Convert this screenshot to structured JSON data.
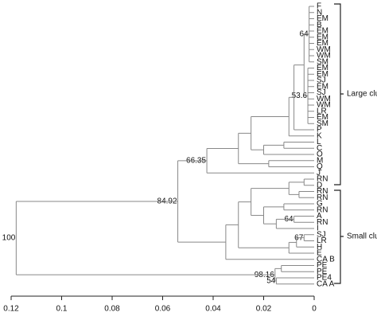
{
  "chart_data": {
    "type": "dendrogram",
    "xlim": [
      0.12,
      0
    ],
    "xticks": [
      0.12,
      0.1,
      0.08,
      0.06,
      0.04,
      0.02,
      0
    ],
    "color": "#888888",
    "cluster_labels": [
      "Large cluster",
      "Small cluster"
    ],
    "tree": {
      "height": 0.118,
      "label": "100",
      "children": [
        {
          "height": 0.054,
          "label": "84.92",
          "children": [
            {
              "height": 0.0425,
              "label": "66.35",
              "children": [
                {
                  "height": 0.03,
                  "children": [
                    {
                      "height": 0.025,
                      "children": [
                        {
                          "height": 0.01,
                          "children": [
                            {
                              "height": 0.008,
                              "children": [
                                {
                                  "height": 0.004,
                                  "children": [
                                    {
                                      "height": 0.002,
                                      "label": "64",
                                      "children": [
                                        "F",
                                        "N",
                                        "EM",
                                        "B",
                                        "EM",
                                        "EM",
                                        "EM",
                                        "WM",
                                        "WM",
                                        "SM"
                                      ]
                                    },
                                    {
                                      "height": 0.0025,
                                      "label": "53.6",
                                      "children": [
                                        "EM",
                                        "EM",
                                        "SJ",
                                        "EM",
                                        "SJ",
                                        "WM",
                                        "WM",
                                        "LR",
                                        "EM",
                                        "SM"
                                      ]
                                    }
                                  ]
                                },
                                "P"
                              ]
                            },
                            "K"
                          ]
                        },
                        {
                          "height": 0.02,
                          "children": [
                            {
                              "height": 0.012,
                              "children": [
                                "L",
                                "C"
                              ]
                            },
                            "O"
                          ]
                        }
                      ]
                    },
                    {
                      "height": 0.018,
                      "children": [
                        "M",
                        "Q"
                      ]
                    }
                  ]
                },
                "J"
              ]
            },
            {
              "height": 0.035,
              "children": [
                {
                  "height": 0.03,
                  "children": [
                    {
                      "height": 0.025,
                      "children": [
                        {
                          "height": 0.01,
                          "children": [
                            {
                              "height": 0.004,
                              "children": [
                                "RN",
                                "D"
                              ]
                            },
                            {
                              "height": 0.006,
                              "children": [
                                "RN",
                                "RN"
                              ]
                            }
                          ]
                        },
                        {
                          "height": 0.02,
                          "children": [
                            {
                              "height": 0.012,
                              "children": [
                                "G",
                                "RN"
                              ]
                            },
                            {
                              "height": 0.015,
                              "children": [
                                {
                                  "height": 0.008,
                                  "label": "64",
                                  "children": [
                                    "A",
                                    "RN"
                                  ]
                                },
                                "I"
                              ]
                            }
                          ]
                        }
                      ]
                    },
                    {
                      "height": 0.01,
                      "children": [
                        {
                          "height": 0.007,
                          "children": [
                            {
                              "height": 0.004,
                              "label": "67",
                              "children": [
                                "SJ",
                                "LR"
                              ]
                            },
                            "H"
                          ]
                        },
                        "E"
                      ]
                    }
                  ]
                },
                "CA B"
              ]
            }
          ]
        },
        {
          "height": 0.0155,
          "label": "98.16",
          "children": [
            {
              "height": 0.013,
              "children": [
                "PE",
                "PE"
              ]
            },
            {
              "height": 0.015,
              "label": "54",
              "children": [
                "PE4",
                "CA A"
              ]
            }
          ]
        }
      ]
    }
  }
}
